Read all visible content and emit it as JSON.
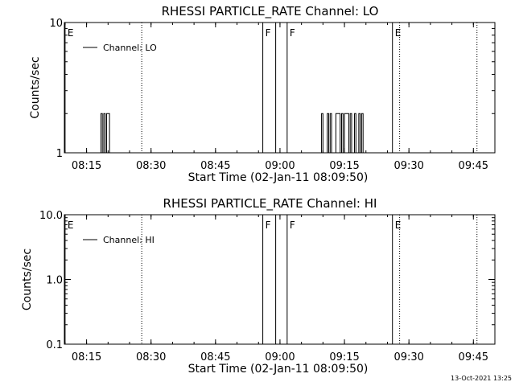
{
  "footer_timestamp": "13-Oct-2021 13:25",
  "chart_data": [
    {
      "type": "line",
      "title": "RHESSI PARTICLE_RATE Channel: LO",
      "xlabel": "Start Time (02-Jan-11 08:09:50)",
      "ylabel": "Counts/sec",
      "yscale": "log",
      "ylim": [
        1,
        10
      ],
      "yticks": [
        1,
        10
      ],
      "yticklabels": [
        "1",
        "10"
      ],
      "xlim": [
        "08:09:50",
        "09:50:00"
      ],
      "xticklabels": [
        "08:15",
        "08:30",
        "08:45",
        "09:00",
        "09:15",
        "09:30",
        "09:45"
      ],
      "legend": {
        "entries": [
          "Channel: LO"
        ],
        "placement": "top-left"
      },
      "series": [
        {
          "name": "Channel: LO",
          "x": [
            "08:18:00",
            "08:18:20",
            "08:18:40",
            "08:19:00",
            "08:19:20",
            "08:19:40",
            "08:20:00",
            "08:20:20",
            "09:09:20",
            "09:09:40",
            "09:10:00",
            "09:10:30",
            "09:11:00",
            "09:11:20",
            "09:11:40",
            "09:12:00",
            "09:12:30",
            "09:13:00",
            "09:13:30",
            "09:14:00",
            "09:14:20",
            "09:14:40",
            "09:15:00",
            "09:15:30",
            "09:16:00",
            "09:16:20",
            "09:16:40",
            "09:17:00",
            "09:17:20",
            "09:17:40",
            "09:18:00",
            "09:18:20",
            "09:18:40",
            "09:19:00",
            "09:19:20"
          ],
          "y": [
            1,
            2,
            1,
            2,
            1,
            2,
            2,
            1,
            1,
            2,
            1,
            1,
            2,
            1,
            2,
            1,
            1,
            2,
            2,
            1,
            2,
            1,
            2,
            2,
            1,
            2,
            1,
            1,
            2,
            1,
            1,
            2,
            1,
            2,
            1
          ]
        }
      ],
      "vertical_markers": [
        {
          "time": "08:10:00",
          "label": "E",
          "style": "solid"
        },
        {
          "time": "08:27:50",
          "style": "dotted"
        },
        {
          "time": "08:56:00",
          "label": "F",
          "style": "solid"
        },
        {
          "time": "08:59:00",
          "style": "solid"
        },
        {
          "time": "09:01:40",
          "label": "F",
          "style": "solid"
        },
        {
          "time": "09:26:10",
          "label": "E",
          "style": "solid"
        },
        {
          "time": "09:27:50",
          "style": "dotted"
        },
        {
          "time": "09:45:50",
          "style": "dotted"
        }
      ]
    },
    {
      "type": "line",
      "title": "RHESSI PARTICLE_RATE Channel: HI",
      "xlabel": "Start Time (02-Jan-11 08:09:50)",
      "ylabel": "Counts/sec",
      "yscale": "log",
      "ylim": [
        0.1,
        10
      ],
      "yticks": [
        0.1,
        1,
        10
      ],
      "yticklabels": [
        "0.1",
        "1.0",
        "10.0"
      ],
      "xlim": [
        "08:09:50",
        "09:50:00"
      ],
      "xticklabels": [
        "08:15",
        "08:30",
        "08:45",
        "09:00",
        "09:15",
        "09:30",
        "09:45"
      ],
      "legend": {
        "entries": [
          "Channel: HI"
        ],
        "placement": "top-left"
      },
      "series": [
        {
          "name": "Channel: HI",
          "x": [],
          "y": []
        }
      ],
      "vertical_markers": [
        {
          "time": "08:10:00",
          "label": "E",
          "style": "solid"
        },
        {
          "time": "08:27:50",
          "style": "dotted"
        },
        {
          "time": "08:56:00",
          "label": "F",
          "style": "solid"
        },
        {
          "time": "08:59:00",
          "style": "solid"
        },
        {
          "time": "09:01:40",
          "label": "F",
          "style": "solid"
        },
        {
          "time": "09:26:10",
          "label": "E",
          "style": "solid"
        },
        {
          "time": "09:27:50",
          "style": "dotted"
        },
        {
          "time": "09:45:50",
          "style": "dotted"
        }
      ]
    }
  ]
}
